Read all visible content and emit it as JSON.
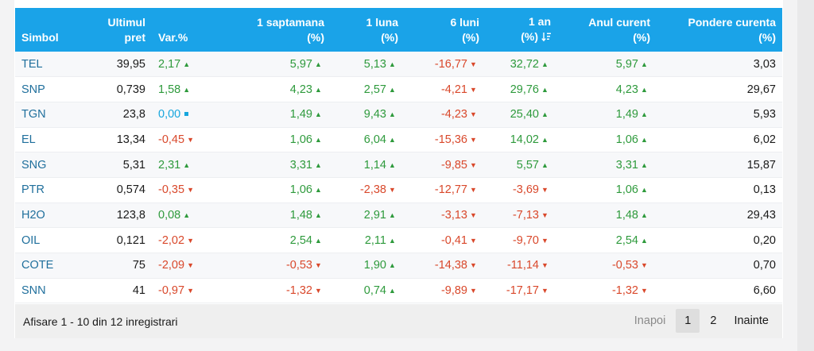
{
  "table": {
    "headers": {
      "simbol": "Simbol",
      "ultimul_1": "Ultimul",
      "ultimul_2": "pret",
      "var": "Var.%",
      "saptamana_1": "1 saptamana",
      "saptamana_2": "(%)",
      "luna_1": "1 luna",
      "luna_2": "(%)",
      "luni6_1": "6 luni",
      "luni6_2": "(%)",
      "an_1": "1 an",
      "an_2": "(%)",
      "anul_1": "Anul curent",
      "anul_2": "(%)",
      "pondere_1": "Pondere curenta",
      "pondere_2": "(%)"
    },
    "sort_icon": "sort-descending-icon",
    "colors": {
      "up": "#2e9a3c",
      "down": "#d9482b",
      "flat": "#17a6dd",
      "header": "#1aa3e8"
    },
    "rows": [
      {
        "sym": "TEL",
        "price": "39,95",
        "var": "2,17",
        "var_t": "up",
        "w1": "5,97",
        "w1_t": "up",
        "m1": "5,13",
        "m1_t": "up",
        "m6": "-16,77",
        "m6_t": "down",
        "y1": "32,72",
        "y1_t": "up",
        "ytd": "5,97",
        "ytd_t": "up",
        "w": "3,03"
      },
      {
        "sym": "SNP",
        "price": "0,739",
        "var": "1,58",
        "var_t": "up",
        "w1": "4,23",
        "w1_t": "up",
        "m1": "2,57",
        "m1_t": "up",
        "m6": "-4,21",
        "m6_t": "down",
        "y1": "29,76",
        "y1_t": "up",
        "ytd": "4,23",
        "ytd_t": "up",
        "w": "29,67"
      },
      {
        "sym": "TGN",
        "price": "23,8",
        "var": "0,00",
        "var_t": "flat",
        "w1": "1,49",
        "w1_t": "up",
        "m1": "9,43",
        "m1_t": "up",
        "m6": "-4,23",
        "m6_t": "down",
        "y1": "25,40",
        "y1_t": "up",
        "ytd": "1,49",
        "ytd_t": "up",
        "w": "5,93"
      },
      {
        "sym": "EL",
        "price": "13,34",
        "var": "-0,45",
        "var_t": "down",
        "w1": "1,06",
        "w1_t": "up",
        "m1": "6,04",
        "m1_t": "up",
        "m6": "-15,36",
        "m6_t": "down",
        "y1": "14,02",
        "y1_t": "up",
        "ytd": "1,06",
        "ytd_t": "up",
        "w": "6,02"
      },
      {
        "sym": "SNG",
        "price": "5,31",
        "var": "2,31",
        "var_t": "up",
        "w1": "3,31",
        "w1_t": "up",
        "m1": "1,14",
        "m1_t": "up",
        "m6": "-9,85",
        "m6_t": "down",
        "y1": "5,57",
        "y1_t": "up",
        "ytd": "3,31",
        "ytd_t": "up",
        "w": "15,87"
      },
      {
        "sym": "PTR",
        "price": "0,574",
        "var": "-0,35",
        "var_t": "down",
        "w1": "1,06",
        "w1_t": "up",
        "m1": "-2,38",
        "m1_t": "down",
        "m6": "-12,77",
        "m6_t": "down",
        "y1": "-3,69",
        "y1_t": "down",
        "ytd": "1,06",
        "ytd_t": "up",
        "w": "0,13"
      },
      {
        "sym": "H2O",
        "price": "123,8",
        "var": "0,08",
        "var_t": "up",
        "w1": "1,48",
        "w1_t": "up",
        "m1": "2,91",
        "m1_t": "up",
        "m6": "-3,13",
        "m6_t": "down",
        "y1": "-7,13",
        "y1_t": "down",
        "ytd": "1,48",
        "ytd_t": "up",
        "w": "29,43"
      },
      {
        "sym": "OIL",
        "price": "0,121",
        "var": "-2,02",
        "var_t": "down",
        "w1": "2,54",
        "w1_t": "up",
        "m1": "2,11",
        "m1_t": "up",
        "m6": "-0,41",
        "m6_t": "down",
        "y1": "-9,70",
        "y1_t": "down",
        "ytd": "2,54",
        "ytd_t": "up",
        "w": "0,20"
      },
      {
        "sym": "COTE",
        "price": "75",
        "var": "-2,09",
        "var_t": "down",
        "w1": "-0,53",
        "w1_t": "down",
        "m1": "1,90",
        "m1_t": "up",
        "m6": "-14,38",
        "m6_t": "down",
        "y1": "-11,14",
        "y1_t": "down",
        "ytd": "-0,53",
        "ytd_t": "down",
        "w": "0,70"
      },
      {
        "sym": "SNN",
        "price": "41",
        "var": "-0,97",
        "var_t": "down",
        "w1": "-1,32",
        "w1_t": "down",
        "m1": "0,74",
        "m1_t": "up",
        "m6": "-9,89",
        "m6_t": "down",
        "y1": "-17,17",
        "y1_t": "down",
        "ytd": "-1,32",
        "ytd_t": "down",
        "w": "6,60"
      }
    ]
  },
  "footer": {
    "info": "Afisare 1 - 10 din 12 inregistrari",
    "prev": "Inapoi",
    "page1": "1",
    "page2": "2",
    "next": "Inainte"
  }
}
